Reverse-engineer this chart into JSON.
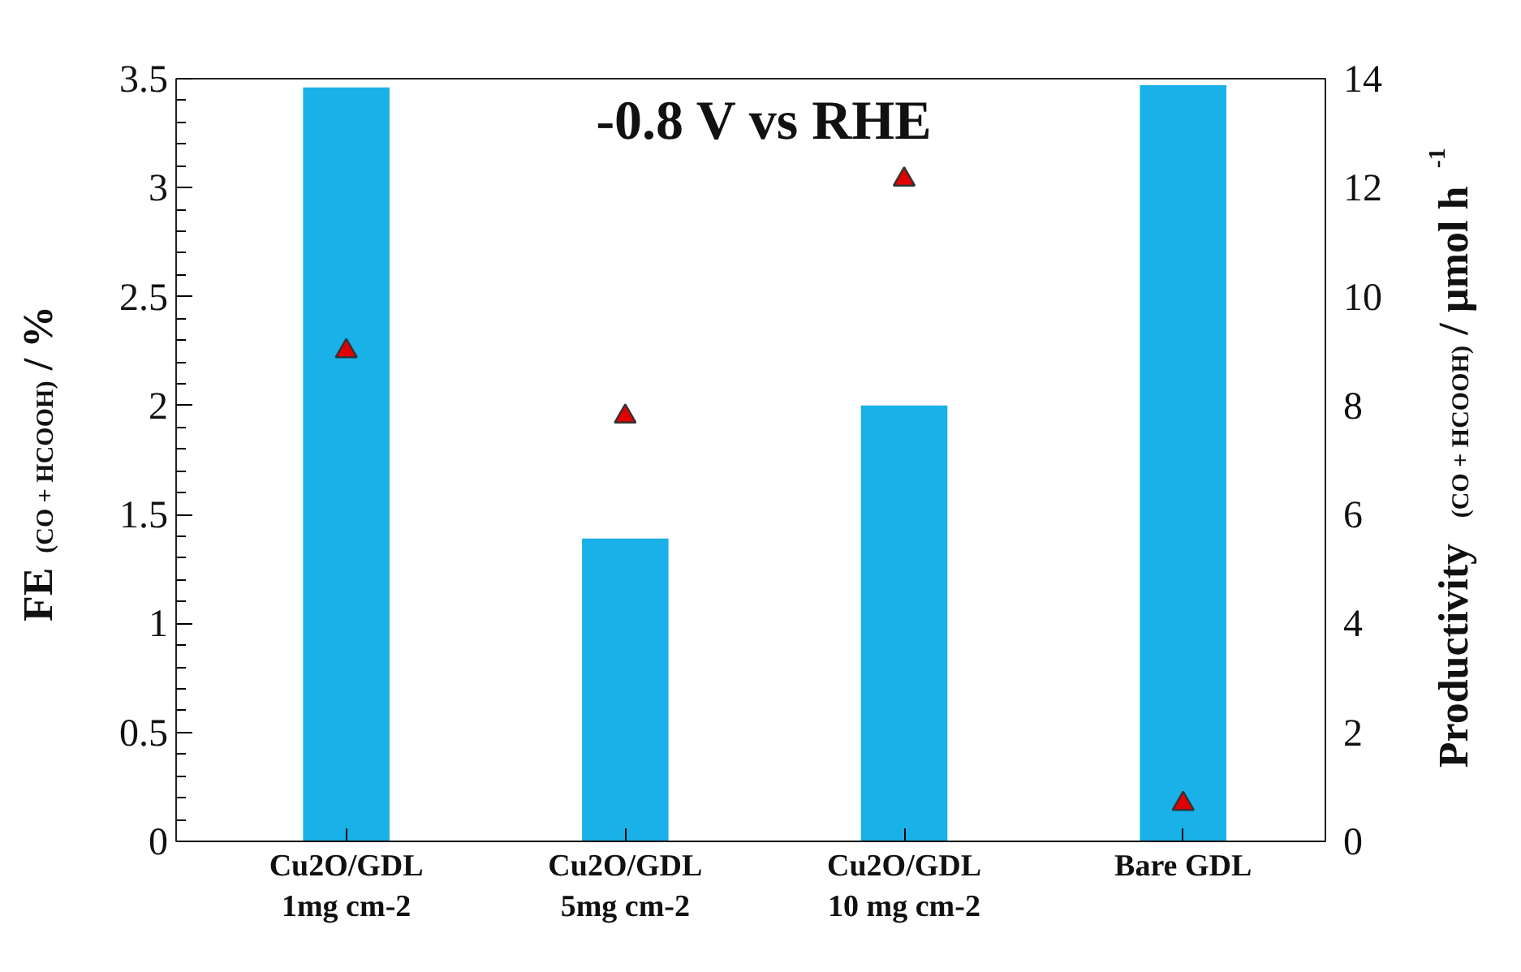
{
  "chart_data": {
    "type": "bar",
    "categories": [
      "Cu2O/GDL\n1mg cm-2",
      "Cu2O/GDL\n5mg cm-2",
      "Cu2O/GDL\n10 mg cm-2",
      "Bare GDL"
    ],
    "series": [
      {
        "color": "#1ab0e8",
        "values": [
          3.46,
          1.39,
          2.0,
          3.47
        ]
      },
      {
        "type": "scatter",
        "axis": "y2",
        "color": "#e00000",
        "marker": "triangle",
        "values": [
          9.0,
          7.8,
          12.15,
          0.69
        ]
      }
    ],
    "ylabel": "FE$_{(CO + HCOOH)}$ / %",
    "y2label": "Productivity$_{(CO + HCOOH)}$ / µmol h$^{-1}$",
    "ylim": [
      0,
      3.5
    ],
    "yticks": [
      0,
      0.5,
      1,
      1.5,
      2,
      2.5,
      3,
      3.5
    ],
    "y2lim": [
      0,
      14
    ],
    "y2ticks": [
      0,
      2,
      4,
      6,
      8,
      10,
      12,
      14
    ],
    "annotations": [
      "-0.8 V vs RHE"
    ],
    "grid": false
  }
}
